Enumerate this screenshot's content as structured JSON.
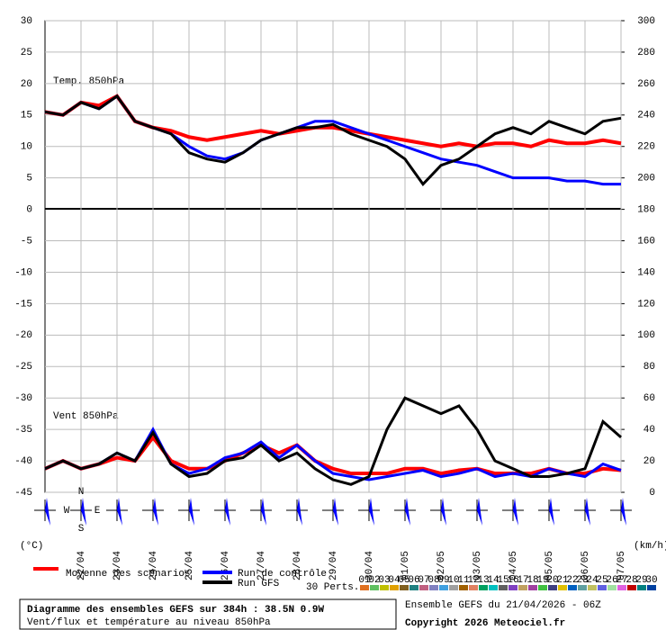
{
  "chart_data": {
    "type": "line",
    "annotations": [
      "Temp. 850hPa",
      "Vent 850hPa"
    ],
    "y_label": "(°C)",
    "y2_label": "(km/h)",
    "xlim": [
      0,
      384
    ],
    "xticks": [
      {
        "value": 24,
        "label": "22/04"
      },
      {
        "value": 48,
        "label": "23/04"
      },
      {
        "value": 72,
        "label": "24/04"
      },
      {
        "value": 96,
        "label": "25/04"
      },
      {
        "value": 120,
        "label": "26/04"
      },
      {
        "value": 144,
        "label": "27/04"
      },
      {
        "value": 168,
        "label": "28/04"
      },
      {
        "value": 192,
        "label": "29/04"
      },
      {
        "value": 216,
        "label": "30/04"
      },
      {
        "value": 240,
        "label": "01/05"
      },
      {
        "value": 264,
        "label": "02/05"
      },
      {
        "value": 288,
        "label": "03/05"
      },
      {
        "value": 312,
        "label": "04/05"
      },
      {
        "value": 336,
        "label": "05/05"
      },
      {
        "value": 360,
        "label": "06/05"
      },
      {
        "value": 384,
        "label": "07/05"
      }
    ],
    "x": [
      0,
      12,
      24,
      36,
      48,
      60,
      72,
      84,
      96,
      108,
      120,
      132,
      144,
      156,
      168,
      180,
      192,
      204,
      216,
      228,
      240,
      252,
      264,
      276,
      288,
      300,
      312,
      324,
      336,
      348,
      360,
      372,
      384
    ],
    "ylim": [
      -45,
      30
    ],
    "yticks": [
      30,
      25,
      20,
      15,
      10,
      5,
      0,
      -5,
      -10,
      -15,
      -20,
      -25,
      -30,
      -35,
      -40,
      -45
    ],
    "y2lim": [
      0,
      300
    ],
    "y2ticks": [
      300,
      280,
      260,
      240,
      220,
      200,
      180,
      160,
      140,
      120,
      100,
      80,
      60,
      40,
      20,
      0
    ],
    "grid": true,
    "series": [
      {
        "name": "Moyenne des scénarios",
        "color": "#ff0000",
        "values": [
          15.5,
          15,
          17,
          16.5,
          18,
          14,
          13,
          12.5,
          11.5,
          11,
          11.5,
          12,
          12.5,
          12,
          12.5,
          13,
          13,
          12.5,
          12,
          11.5,
          11,
          10.5,
          10,
          10.5,
          10,
          10.5,
          10.5,
          10,
          11,
          10.5,
          10.5,
          11,
          10.5
        ]
      },
      {
        "name": "Run de contrôle",
        "color": "#0000ff",
        "values": [
          15.5,
          15,
          17,
          16,
          18,
          14,
          13,
          12,
          10,
          8.5,
          8,
          9,
          11,
          12,
          13,
          14,
          14,
          13,
          12,
          11,
          10,
          9,
          8,
          7.5,
          7,
          6,
          5,
          5,
          5,
          4.5,
          4.5,
          4,
          4
        ]
      },
      {
        "name": "Run GFS",
        "color": "#000000",
        "values": [
          15.5,
          15,
          17,
          16,
          18,
          14,
          13,
          12,
          9,
          8,
          7.5,
          9,
          11,
          12,
          13,
          13,
          13.5,
          12,
          11,
          10,
          8,
          4,
          7,
          8,
          10,
          12,
          13,
          12,
          14,
          13,
          12,
          14,
          14.5
        ]
      },
      {
        "name": "Moyenne des scénarios",
        "color": "#ff0000",
        "axis": "y2",
        "values": [
          15,
          20,
          15,
          18,
          22,
          20,
          35,
          20,
          15,
          15,
          20,
          25,
          30,
          25,
          30,
          20,
          15,
          12,
          12,
          12,
          15,
          15,
          12,
          14,
          15,
          12,
          12,
          12,
          15,
          12,
          12,
          15,
          14
        ]
      },
      {
        "name": "Run de contrôle",
        "color": "#0000ff",
        "axis": "y2",
        "values": [
          15,
          20,
          15,
          18,
          25,
          20,
          40,
          18,
          12,
          15,
          22,
          25,
          32,
          22,
          30,
          20,
          12,
          10,
          8,
          10,
          12,
          14,
          10,
          12,
          15,
          10,
          12,
          10,
          15,
          12,
          10,
          18,
          14
        ]
      },
      {
        "name": "Run GFS",
        "color": "#000000",
        "axis": "y2",
        "values": [
          15,
          20,
          15,
          18,
          25,
          20,
          38,
          18,
          10,
          12,
          20,
          22,
          30,
          20,
          25,
          15,
          8,
          5,
          10,
          40,
          60,
          55,
          50,
          55,
          40,
          20,
          15,
          10,
          10,
          12,
          15,
          45,
          35
        ]
      }
    ],
    "perturbations_label": "30 Perts.",
    "perturbations": [
      {
        "name": "01",
        "color": "#e07020"
      },
      {
        "name": "02",
        "color": "#60c060"
      },
      {
        "name": "03",
        "color": "#c0c000"
      },
      {
        "name": "04",
        "color": "#e0a000"
      },
      {
        "name": "05",
        "color": "#806020"
      },
      {
        "name": "06",
        "color": "#208080"
      },
      {
        "name": "07",
        "color": "#c06080"
      },
      {
        "name": "08",
        "color": "#8080c0"
      },
      {
        "name": "09",
        "color": "#40a0e0"
      },
      {
        "name": "10",
        "color": "#a0a0a0"
      },
      {
        "name": "11",
        "color": "#a06000"
      },
      {
        "name": "12",
        "color": "#e08060"
      },
      {
        "name": "13",
        "color": "#00a060"
      },
      {
        "name": "14",
        "color": "#00c0c0"
      },
      {
        "name": "15",
        "color": "#606060"
      },
      {
        "name": "16",
        "color": "#8040c0"
      },
      {
        "name": "17",
        "color": "#c0a060"
      },
      {
        "name": "18",
        "color": "#a040a0"
      },
      {
        "name": "19",
        "color": "#40c040"
      },
      {
        "name": "20",
        "color": "#404080"
      },
      {
        "name": "21",
        "color": "#e0c000"
      },
      {
        "name": "22",
        "color": "#0060c0"
      },
      {
        "name": "23",
        "color": "#60a0a0"
      },
      {
        "name": "24",
        "color": "#c0c060"
      },
      {
        "name": "25",
        "color": "#6060e0"
      },
      {
        "name": "26",
        "color": "#a0e0a0"
      },
      {
        "name": "27",
        "color": "#e060e0"
      },
      {
        "name": "28",
        "color": "#c00000"
      },
      {
        "name": "29",
        "color": "#008080"
      },
      {
        "name": "30",
        "color": "#0040a0"
      }
    ],
    "compass": [
      "N",
      "W",
      "E",
      "S"
    ]
  },
  "footer": {
    "title": "Diagramme des ensembles GEFS sur 384h : 38.5N 0.9W",
    "subtitle": "Vent/flux et température au niveau 850hPa",
    "run": "Ensemble GEFS du 21/04/2026 - 06Z",
    "copyright": "Copyright 2026 Meteociel.fr"
  }
}
